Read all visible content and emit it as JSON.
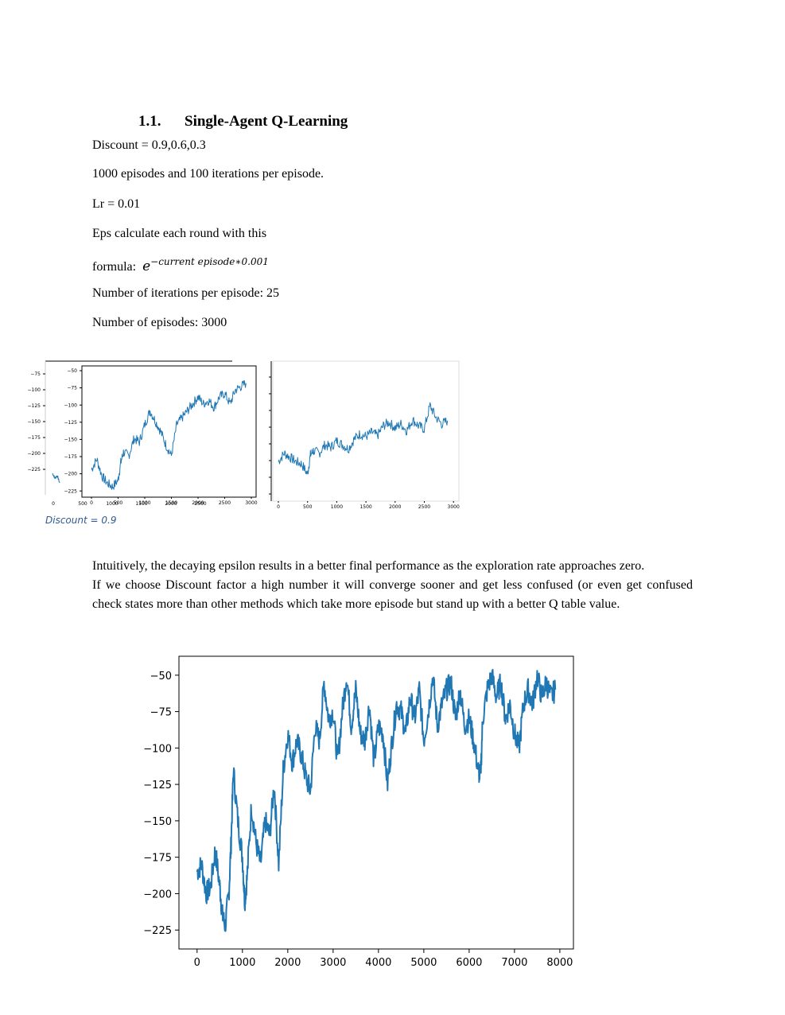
{
  "section": {
    "number": "1.1.",
    "title": "Single-Agent  Q-Learning"
  },
  "lines": {
    "discount": "Discount = 0.9,0.6,0.3",
    "episodes": "1000 episodes and 100 iterations per episode.",
    "lr": "Lr = 0.01",
    "eps": "Eps calculate each round with this",
    "formula_label": "formula: ",
    "formula_base": "e",
    "formula_exponent": "−current episode∗0.001",
    "iterations": " Number of iterations per episode: 25",
    "num_episodes": "Number of episodes: 3000"
  },
  "figure_caption": "Discount = 0.9",
  "paragraphs": [
    "Intuitively, the decaying epsilon results in a better final performance as the exploration rate approaches zero.",
    "If we choose Discount factor a high number it will converge sooner and get less confused (or even get confused check states more than other methods which take more episode but stand up with a better Q table value."
  ],
  "chart_data": [
    {
      "type": "line",
      "panel": "small-left-back",
      "x": [
        0,
        100,
        200,
        300
      ],
      "y": [
        -190,
        -200,
        -195,
        -210
      ],
      "xticks": [
        "0",
        "500",
        "1000",
        "1500",
        "2000",
        "2500"
      ],
      "yticks": [
        "−75",
        "−100",
        "−125",
        "−150",
        "−175",
        "−200",
        "−225"
      ],
      "color": "#1f77b4"
    },
    {
      "type": "line",
      "panel": "small-left-front",
      "xlim": [
        0,
        3000
      ],
      "ylim": [
        -235,
        -45
      ],
      "xticks": [
        "0",
        "500",
        "1000",
        "1500",
        "2000",
        "2500",
        "3000"
      ],
      "yticks": [
        "−50",
        "−75",
        "−100",
        "−125",
        "−150",
        "−175",
        "−200",
        "−225"
      ],
      "x": [
        0,
        100,
        200,
        300,
        400,
        500,
        550,
        600,
        700,
        800,
        900,
        1000,
        1100,
        1200,
        1300,
        1400,
        1500,
        1600,
        1700,
        1800,
        1900,
        2000,
        2100,
        2200,
        2300,
        2400,
        2500,
        2600,
        2700,
        2800,
        2900
      ],
      "y": [
        -195,
        -180,
        -205,
        -215,
        -220,
        -210,
        -185,
        -170,
        -175,
        -150,
        -155,
        -130,
        -110,
        -125,
        -140,
        -160,
        -175,
        -130,
        -120,
        -110,
        -100,
        -90,
        -100,
        -95,
        -105,
        -90,
        -85,
        -100,
        -80,
        -75,
        -70
      ],
      "color": "#1f77b4"
    },
    {
      "type": "line",
      "panel": "small-right",
      "xlim": [
        0,
        3000
      ],
      "xticks": [
        "0",
        "500",
        "1000",
        "1500",
        "2000",
        "2500",
        "3000"
      ],
      "x": [
        0,
        100,
        200,
        300,
        400,
        500,
        550,
        600,
        700,
        800,
        900,
        1000,
        1100,
        1200,
        1300,
        1400,
        1500,
        1600,
        1700,
        1800,
        1900,
        2000,
        2100,
        2200,
        2300,
        2400,
        2500,
        2600,
        2700,
        2800,
        2900
      ],
      "y": [
        -0.5,
        0.5,
        0,
        -0.5,
        -0.8,
        -2,
        0.3,
        0.8,
        0.5,
        1.5,
        1.2,
        2,
        1.5,
        1.0,
        2.2,
        2.8,
        2.5,
        3,
        2.6,
        3.8,
        4.2,
        3.5,
        4,
        3.2,
        4.5,
        3.8,
        3.4,
        6.2,
        4.8,
        4.0,
        4.4
      ],
      "color": "#1f77b4"
    },
    {
      "type": "line",
      "panel": "main",
      "xlim": [
        -400,
        8300
      ],
      "ylim": [
        -238,
        -37
      ],
      "xticks": [
        "0",
        "1000",
        "2000",
        "3000",
        "4000",
        "5000",
        "6000",
        "7000",
        "8000"
      ],
      "yticks": [
        "−50",
        "−75",
        "−100",
        "−125",
        "−150",
        "−175",
        "−200",
        "−225"
      ],
      "x": [
        0,
        100,
        200,
        300,
        400,
        500,
        560,
        620,
        700,
        750,
        800,
        900,
        1000,
        1050,
        1100,
        1200,
        1300,
        1400,
        1500,
        1600,
        1700,
        1800,
        1900,
        2000,
        2100,
        2200,
        2300,
        2400,
        2500,
        2600,
        2700,
        2800,
        2900,
        3000,
        3100,
        3200,
        3300,
        3400,
        3500,
        3600,
        3700,
        3800,
        3900,
        4000,
        4100,
        4200,
        4300,
        4400,
        4500,
        4600,
        4700,
        4800,
        4900,
        5000,
        5100,
        5200,
        5300,
        5400,
        5500,
        5600,
        5700,
        5800,
        5900,
        6000,
        6100,
        6200,
        6250,
        6300,
        6400,
        6500,
        6600,
        6700,
        6800,
        6900,
        7000,
        7100,
        7200,
        7300,
        7400,
        7500,
        7600,
        7700,
        7800,
        7900
      ],
      "y": [
        -185,
        -180,
        -200,
        -195,
        -170,
        -195,
        -215,
        -222,
        -200,
        -165,
        -115,
        -150,
        -175,
        -205,
        -190,
        -140,
        -165,
        -180,
        -150,
        -160,
        -125,
        -180,
        -115,
        -90,
        -110,
        -95,
        -105,
        -120,
        -130,
        -85,
        -95,
        -55,
        -80,
        -75,
        -110,
        -75,
        -50,
        -85,
        -60,
        -90,
        -95,
        -70,
        -110,
        -85,
        -90,
        -125,
        -95,
        -70,
        -75,
        -90,
        -65,
        -80,
        -60,
        -95,
        -75,
        -50,
        -85,
        -70,
        -60,
        -55,
        -80,
        -60,
        -85,
        -80,
        -95,
        -115,
        -120,
        -80,
        -60,
        -50,
        -65,
        -55,
        -80,
        -70,
        -90,
        -100,
        -70,
        -60,
        -70,
        -50,
        -65,
        -55,
        -65,
        -60
      ],
      "color": "#1f77b4"
    }
  ]
}
